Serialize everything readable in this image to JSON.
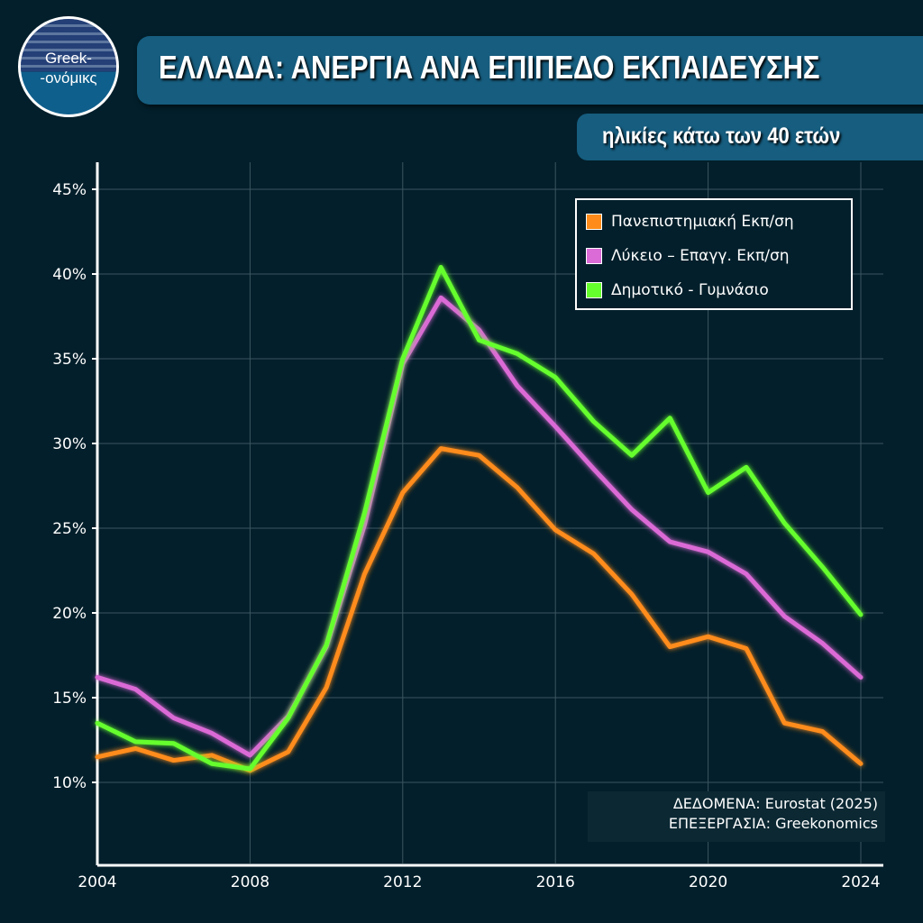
{
  "logo": {
    "line1": "Greek-",
    "line2": "-ονόμικς"
  },
  "header": {
    "title": "ΕΛΛΑΔΑ: ΑΝΕΡΓΙΑ ΑΝΑ ΕΠΙΠΕΔΟ ΕΚΠΑΙΔΕΥΣΗΣ",
    "subtitle": "ηλικίες κάτω των 40 ετών"
  },
  "source": {
    "data": "ΔΕΔΟΜΕΝΑ: Eurostat (2025)",
    "processing": "ΕΠΕΞΕΡΓΑΣΙΑ: Greekonomics"
  },
  "chart_data": {
    "type": "line",
    "title": "ΕΛΛΑΔΑ: ΑΝΕΡΓΙΑ ΑΝΑ ΕΠΙΠΕΔΟ ΕΚΠΑΙΔΕΥΣΗΣ",
    "subtitle": "ηλικίες κάτω των 40 ετών",
    "x": [
      2004,
      2005,
      2006,
      2007,
      2008,
      2009,
      2010,
      2011,
      2012,
      2013,
      2014,
      2015,
      2016,
      2017,
      2018,
      2019,
      2020,
      2021,
      2022,
      2023,
      2024
    ],
    "xlim": [
      2004,
      2024
    ],
    "xticks": [
      "2004",
      "2008",
      "2012",
      "2016",
      "2020",
      "2024"
    ],
    "ylim": [
      10,
      45
    ],
    "yticks": [
      "10%",
      "15%",
      "20%",
      "25%",
      "30%",
      "35%",
      "40%",
      "45%"
    ],
    "grid": true,
    "legend_position": "top-right",
    "series": [
      {
        "name": "Πανεπιστημιακή Εκπ/ση",
        "color": "#ff8c1a",
        "values": [
          11.5,
          12.0,
          11.3,
          11.6,
          10.7,
          11.8,
          15.6,
          22.3,
          27.1,
          29.7,
          29.3,
          27.4,
          24.9,
          23.5,
          21.1,
          18.0,
          18.6,
          17.9,
          13.5,
          13.0,
          11.1
        ]
      },
      {
        "name": "Λύκειο – Επαγγ. Εκπ/ση",
        "color": "#db6bd6",
        "values": [
          16.2,
          15.5,
          13.8,
          12.9,
          11.6,
          13.9,
          18.0,
          25.2,
          34.7,
          38.6,
          36.7,
          33.4,
          31.0,
          28.5,
          26.1,
          24.2,
          23.6,
          22.3,
          19.8,
          18.2,
          16.2
        ]
      },
      {
        "name": "Δημοτικό - Γυμνάσιο",
        "color": "#66ff2e",
        "values": [
          13.5,
          12.4,
          12.3,
          11.1,
          10.8,
          13.8,
          18.1,
          25.9,
          35.0,
          40.4,
          36.1,
          35.3,
          33.9,
          31.3,
          29.3,
          31.5,
          27.1,
          28.6,
          25.3,
          22.7,
          19.9
        ]
      }
    ]
  }
}
